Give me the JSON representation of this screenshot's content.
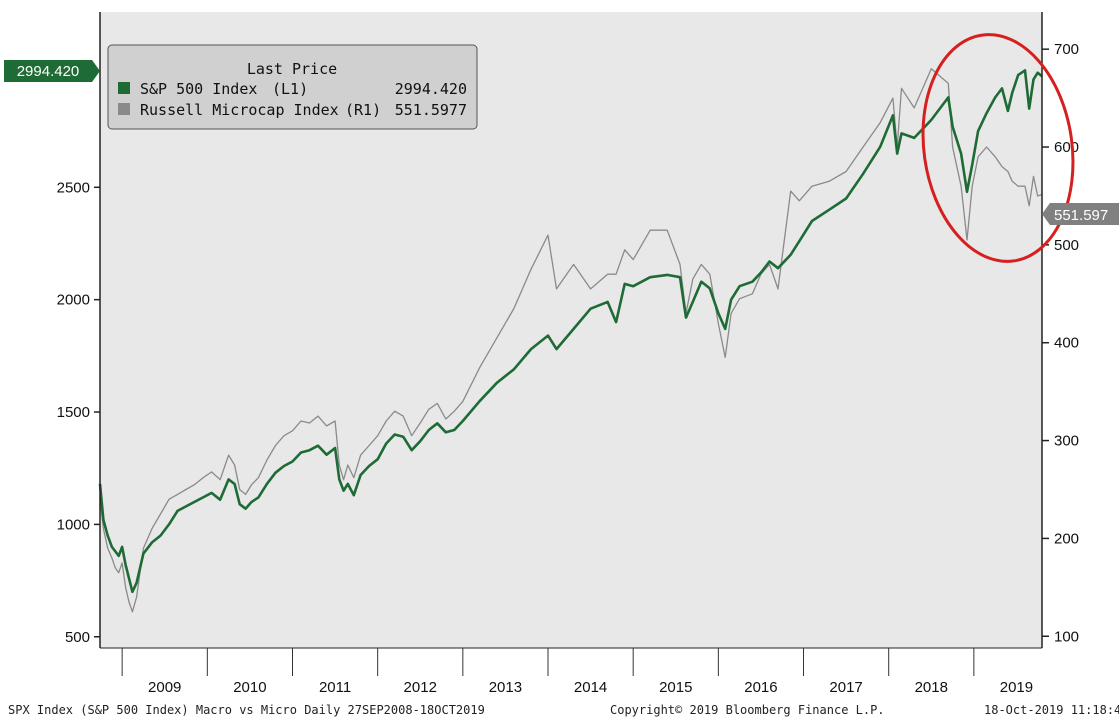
{
  "chart_data": {
    "type": "line",
    "legend": {
      "title": "Last Price",
      "placement": "top-left",
      "entries": [
        {
          "name": "S&P 500 Index",
          "axis": "(L1)",
          "value": "2994.420",
          "color": "#1e6b35"
        },
        {
          "name": "Russell Microcap Index",
          "axis": "(R1)",
          "value": "551.5977",
          "color": "#8a8a8a"
        }
      ]
    },
    "left_axis": {
      "ticks": [
        500,
        1000,
        1500,
        2000,
        2500
      ],
      "range": [
        450,
        3280
      ],
      "last_price_badge": "2994.420"
    },
    "right_axis": {
      "ticks": [
        100,
        200,
        300,
        400,
        500,
        600,
        700
      ],
      "range": [
        88,
        738
      ],
      "last_price_badge": "551.597"
    },
    "x_axis": {
      "labels": [
        "2009",
        "2010",
        "2011",
        "2012",
        "2013",
        "2014",
        "2015",
        "2016",
        "2017",
        "2018",
        "2019"
      ],
      "range": [
        "2008-09-27",
        "2019-10-18"
      ]
    },
    "grid": false,
    "series": [
      {
        "name": "S&P 500 Index",
        "axis": "left",
        "color": "#1e6b35",
        "x": [
          2008.74,
          2008.78,
          2008.83,
          2008.88,
          2008.92,
          2008.96,
          2009.0,
          2009.04,
          2009.08,
          2009.12,
          2009.17,
          2009.25,
          2009.35,
          2009.45,
          2009.55,
          2009.65,
          2009.75,
          2009.85,
          2009.95,
          2010.05,
          2010.15,
          2010.25,
          2010.32,
          2010.38,
          2010.45,
          2010.52,
          2010.6,
          2010.7,
          2010.8,
          2010.9,
          2011.0,
          2011.1,
          2011.2,
          2011.3,
          2011.4,
          2011.5,
          2011.55,
          2011.6,
          2011.65,
          2011.72,
          2011.8,
          2011.9,
          2012.0,
          2012.1,
          2012.2,
          2012.3,
          2012.4,
          2012.5,
          2012.6,
          2012.7,
          2012.8,
          2012.9,
          2013.0,
          2013.2,
          2013.4,
          2013.6,
          2013.8,
          2014.0,
          2014.1,
          2014.3,
          2014.5,
          2014.7,
          2014.8,
          2014.9,
          2015.0,
          2015.2,
          2015.4,
          2015.55,
          2015.62,
          2015.7,
          2015.8,
          2015.9,
          2016.0,
          2016.08,
          2016.15,
          2016.25,
          2016.4,
          2016.5,
          2016.6,
          2016.7,
          2016.85,
          2016.95,
          2017.1,
          2017.3,
          2017.5,
          2017.7,
          2017.9,
          2018.05,
          2018.1,
          2018.15,
          2018.3,
          2018.5,
          2018.7,
          2018.75,
          2018.85,
          2018.92,
          2018.98,
          2019.05,
          2019.15,
          2019.25,
          2019.33,
          2019.4,
          2019.45,
          2019.52,
          2019.6,
          2019.65,
          2019.7,
          2019.75,
          2019.8
        ],
        "values": [
          1180,
          1020,
          950,
          900,
          880,
          860,
          900,
          820,
          760,
          700,
          740,
          870,
          920,
          950,
          1000,
          1060,
          1080,
          1100,
          1120,
          1140,
          1110,
          1200,
          1180,
          1090,
          1070,
          1100,
          1120,
          1180,
          1230,
          1260,
          1280,
          1320,
          1330,
          1350,
          1310,
          1340,
          1200,
          1150,
          1180,
          1130,
          1220,
          1260,
          1290,
          1360,
          1400,
          1390,
          1330,
          1370,
          1420,
          1450,
          1410,
          1420,
          1460,
          1550,
          1630,
          1690,
          1780,
          1840,
          1780,
          1870,
          1960,
          1990,
          1900,
          2070,
          2060,
          2100,
          2110,
          2100,
          1920,
          1990,
          2080,
          2050,
          1940,
          1870,
          2000,
          2060,
          2080,
          2120,
          2170,
          2140,
          2200,
          2260,
          2350,
          2400,
          2450,
          2560,
          2680,
          2820,
          2650,
          2740,
          2720,
          2800,
          2900,
          2770,
          2650,
          2480,
          2600,
          2750,
          2830,
          2900,
          2940,
          2840,
          2920,
          3000,
          3020,
          2850,
          2980,
          3010,
          2994
        ]
      },
      {
        "name": "Russell Microcap Index",
        "axis": "right",
        "color": "#8a8a8a",
        "x": [
          2008.74,
          2008.78,
          2008.83,
          2008.88,
          2008.92,
          2008.96,
          2009.0,
          2009.04,
          2009.08,
          2009.12,
          2009.17,
          2009.25,
          2009.35,
          2009.45,
          2009.55,
          2009.65,
          2009.75,
          2009.85,
          2009.95,
          2010.05,
          2010.15,
          2010.25,
          2010.32,
          2010.38,
          2010.45,
          2010.52,
          2010.6,
          2010.7,
          2010.8,
          2010.9,
          2011.0,
          2011.1,
          2011.2,
          2011.3,
          2011.4,
          2011.5,
          2011.55,
          2011.6,
          2011.65,
          2011.72,
          2011.8,
          2011.9,
          2012.0,
          2012.1,
          2012.2,
          2012.3,
          2012.4,
          2012.5,
          2012.6,
          2012.7,
          2012.8,
          2012.9,
          2013.0,
          2013.2,
          2013.4,
          2013.6,
          2013.8,
          2014.0,
          2014.1,
          2014.3,
          2014.5,
          2014.7,
          2014.8,
          2014.9,
          2015.0,
          2015.2,
          2015.4,
          2015.55,
          2015.62,
          2015.7,
          2015.8,
          2015.9,
          2016.0,
          2016.08,
          2016.15,
          2016.25,
          2016.4,
          2016.5,
          2016.6,
          2016.7,
          2016.85,
          2016.95,
          2017.1,
          2017.3,
          2017.5,
          2017.7,
          2017.9,
          2018.05,
          2018.1,
          2018.15,
          2018.3,
          2018.5,
          2018.7,
          2018.75,
          2018.85,
          2018.92,
          2018.98,
          2019.05,
          2019.15,
          2019.25,
          2019.33,
          2019.4,
          2019.45,
          2019.52,
          2019.6,
          2019.65,
          2019.7,
          2019.75,
          2019.8
        ],
        "values": [
          240,
          210,
          190,
          180,
          170,
          165,
          175,
          150,
          135,
          125,
          140,
          190,
          210,
          225,
          240,
          245,
          250,
          255,
          262,
          268,
          260,
          285,
          275,
          250,
          245,
          255,
          262,
          280,
          295,
          305,
          310,
          320,
          318,
          325,
          315,
          320,
          275,
          260,
          275,
          262,
          285,
          295,
          305,
          320,
          330,
          325,
          305,
          318,
          332,
          338,
          322,
          330,
          340,
          375,
          405,
          435,
          475,
          510,
          455,
          480,
          455,
          470,
          470,
          495,
          485,
          515,
          515,
          480,
          430,
          465,
          480,
          470,
          420,
          385,
          430,
          445,
          450,
          470,
          480,
          455,
          555,
          545,
          560,
          565,
          575,
          600,
          625,
          650,
          600,
          660,
          640,
          680,
          665,
          600,
          560,
          505,
          560,
          590,
          600,
          590,
          580,
          575,
          565,
          560,
          560,
          540,
          570,
          550,
          551.6
        ]
      }
    ],
    "annotation": "red-ellipse-highlight-2018-2019"
  },
  "footer": {
    "left": "SPX Index (S&P 500 Index) Macro vs Micro  Daily 27SEP2008-18OCT2019",
    "center": "Copyright© 2019 Bloomberg Finance L.P.",
    "right": "18-Oct-2019 11:18:4"
  }
}
